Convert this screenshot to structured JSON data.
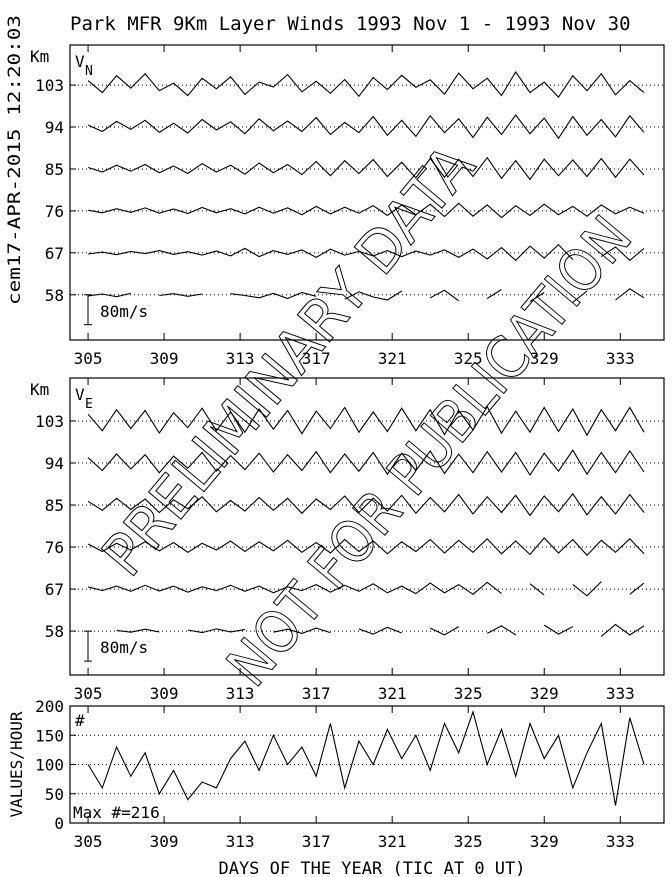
{
  "chart_data": [
    {
      "type": "line",
      "title": "Park MFR 9Km Layer Winds 1993 Nov  1 - 1993 Nov 30",
      "side_label": "cem17-APR-2015 12:20:03",
      "label": "V",
      "label_sub": "N",
      "ylabel": "Km",
      "annotations": [
        "PRELIMINARY DATA",
        "NOT FOR PUBLICATION"
      ],
      "scale_bar": {
        "value": 80,
        "label": "80m/s"
      },
      "xlim": [
        304.05,
        335.3
      ],
      "xticks": [
        305,
        309,
        313,
        317,
        321,
        325,
        329,
        333
      ],
      "ylim": [
        48.3,
        111.6
      ],
      "yticks": [
        58,
        67,
        76,
        85,
        94,
        103
      ],
      "grid": true,
      "color": "#000000",
      "x": [
        305,
        305.75,
        306.5,
        307.25,
        308,
        308.75,
        309.5,
        310.25,
        311,
        311.75,
        312.5,
        313.25,
        314,
        314.75,
        315.5,
        316.25,
        317,
        317.75,
        318.5,
        319.25,
        320,
        320.75,
        321.5,
        322.25,
        323,
        323.75,
        324.5,
        325.25,
        326,
        326.75,
        327.5,
        328.25,
        329,
        329.75,
        330.5,
        331.25,
        332,
        332.75,
        333.5,
        334.25
      ],
      "series": [
        {
          "values": [
            -3,
            2,
            -5,
            4,
            null,
            -2,
            3,
            -4,
            2,
            null,
            3,
            -2,
            -8,
            4,
            -10,
            6,
            -4,
            null,
            -12,
            8,
            -6,
            -14,
            10,
            null,
            -8,
            12,
            -16,
            null,
            -10,
            14,
            null,
            -18,
            6,
            null,
            -20,
            10,
            null,
            -14,
            16,
            -8
          ]
        },
        {
          "values": [
            -3,
            2,
            -5,
            4,
            -2,
            6,
            -4,
            3,
            -6,
            5,
            -8,
            12,
            -10,
            6,
            -4,
            8,
            -12,
            10,
            -6,
            4,
            -8,
            6,
            -10,
            5,
            -6,
            8,
            -12,
            10,
            -16,
            14,
            -20,
            18,
            -14,
            22,
            -18,
            null,
            -10,
            16,
            -20,
            12
          ]
        },
        {
          "values": [
            2,
            -5,
            6,
            -4,
            8,
            -6,
            5,
            -7,
            9,
            -5,
            6,
            -8,
            10,
            -6,
            8,
            -10,
            12,
            -8,
            10,
            -6,
            14,
            -12,
            16,
            -10,
            18,
            -15,
            20,
            -14,
            16,
            -18,
            14,
            -12,
            18,
            -10,
            12,
            -14,
            16,
            -8,
            10,
            -6
          ]
        },
        {
          "values": [
            4,
            -8,
            10,
            -6,
            12,
            -10,
            8,
            -12,
            14,
            -8,
            10,
            -14,
            16,
            -10,
            12,
            -15,
            20,
            -18,
            22,
            -12,
            25,
            -20,
            18,
            -24,
            28,
            -22,
            26,
            -20,
            30,
            -25,
            22,
            -28,
            26,
            -18,
            24,
            -20,
            28,
            -22,
            26,
            -16
          ]
        },
        {
          "values": [
            5,
            -12,
            15,
            -6,
            18,
            -14,
            10,
            -16,
            20,
            -8,
            14,
            -18,
            22,
            -10,
            16,
            -12,
            25,
            -20,
            12,
            -15,
            28,
            -22,
            18,
            -25,
            30,
            -15,
            22,
            -28,
            26,
            -20,
            32,
            -18,
            24,
            -30,
            28,
            -22,
            20,
            -26,
            30,
            -14
          ]
        },
        {
          "values": [
            12,
            -20,
            25,
            -8,
            30,
            -15,
            5,
            -28,
            18,
            -10,
            22,
            -25,
            8,
            -5,
            28,
            -18,
            10,
            -22,
            15,
            -30,
            20,
            -12,
            26,
            -6,
            14,
            -24,
            32,
            -10,
            18,
            -28,
            35,
            -20,
            8,
            -32,
            25,
            -15,
            30,
            -26,
            12,
            -20
          ]
        }
      ]
    },
    {
      "type": "line",
      "label": "V",
      "label_sub": "E",
      "ylabel": "Km",
      "scale_bar": {
        "value": 80,
        "label": "80m/s"
      },
      "xlim": [
        304.05,
        335.3
      ],
      "xticks": [
        305,
        309,
        313,
        317,
        321,
        325,
        329,
        333
      ],
      "ylim": [
        48.6,
        112.2
      ],
      "yticks": [
        58,
        67,
        76,
        85,
        94,
        103
      ],
      "grid": true,
      "color": "#000000",
      "x": [
        305,
        305.75,
        306.5,
        307.25,
        308,
        308.75,
        309.5,
        310.25,
        311,
        311.75,
        312.5,
        313.25,
        314,
        314.75,
        315.5,
        316.25,
        317,
        317.75,
        318.5,
        319.25,
        320,
        320.75,
        321.5,
        322.25,
        323,
        323.75,
        324.5,
        325.25,
        326,
        326.75,
        327.5,
        328.25,
        329,
        329.75,
        330.5,
        331.25,
        332,
        332.75,
        333.5,
        334.25
      ],
      "series": [
        {
          "values": [
            4,
            null,
            2,
            -3,
            5,
            -2,
            null,
            3,
            -4,
            6,
            -2,
            4,
            null,
            -3,
            5,
            -6,
            8,
            -4,
            null,
            6,
            -8,
            10,
            -5,
            null,
            8,
            -10,
            12,
            null,
            -6,
            14,
            -10,
            null,
            16,
            -8,
            12,
            null,
            -14,
            18,
            -10,
            14
          ]
        },
        {
          "values": [
            6,
            -4,
            8,
            -6,
            10,
            -5,
            8,
            -8,
            6,
            -4,
            10,
            -6,
            8,
            -10,
            6,
            -4,
            12,
            -8,
            10,
            -6,
            14,
            -10,
            8,
            -12,
            16,
            -10,
            12,
            -14,
            18,
            -12,
            null,
            14,
            -16,
            null,
            12,
            -18,
            20,
            null,
            -14,
            16
          ]
        },
        {
          "values": [
            8,
            -12,
            10,
            -8,
            14,
            -10,
            12,
            -14,
            10,
            -8,
            16,
            -12,
            14,
            -10,
            18,
            -14,
            12,
            -16,
            20,
            -12,
            16,
            -18,
            14,
            -12,
            20,
            -16,
            18,
            -14,
            22,
            -18,
            16,
            -20,
            24,
            -16,
            20,
            -22,
            18,
            -14,
            22,
            -18
          ]
        },
        {
          "values": [
            10,
            -14,
            18,
            -12,
            16,
            -20,
            14,
            -10,
            22,
            -18,
            12,
            -16,
            20,
            -14,
            18,
            -22,
            16,
            -12,
            24,
            -20,
            18,
            -16,
            26,
            -22,
            20,
            -18,
            28,
            -24,
            22,
            -20,
            26,
            -28,
            24,
            -18,
            30,
            -26,
            22,
            -24,
            28,
            -20
          ]
        },
        {
          "values": [
            14,
            -20,
            24,
            -16,
            22,
            -26,
            18,
            -14,
            28,
            -22,
            20,
            -18,
            26,
            -24,
            22,
            -20,
            30,
            -26,
            24,
            -22,
            28,
            -30,
            26,
            -20,
            32,
            -28,
            24,
            -26,
            30,
            -24,
            28,
            -32,
            26,
            -22,
            34,
            -30,
            28,
            -26,
            32,
            -24
          ]
        },
        {
          "values": [
            18,
            -26,
            30,
            -20,
            28,
            -32,
            22,
            -18,
            34,
            -26,
            24,
            -30,
            32,
            -22,
            28,
            -34,
            26,
            -20,
            36,
            -30,
            24,
            -28,
            34,
            -26,
            30,
            -36,
            28,
            -24,
            38,
            -32,
            26,
            -30,
            36,
            -28,
            32,
            -38,
            30,
            -26,
            36,
            -30
          ]
        }
      ]
    },
    {
      "type": "line",
      "ylabel": "VALUES/HOUR",
      "annotation": "#",
      "max_label": "Max #=216",
      "xlabel": "DAYS OF THE YEAR (TIC AT 0 UT)",
      "xlim": [
        304.05,
        335.3
      ],
      "xticks": [
        305,
        309,
        313,
        317,
        321,
        325,
        329,
        333
      ],
      "ylim": [
        0,
        200
      ],
      "yticks": [
        0,
        50,
        100,
        150,
        200
      ],
      "grid": true,
      "color": "#000000",
      "x": [
        305,
        305.75,
        306.5,
        307.25,
        308,
        308.75,
        309.5,
        310.25,
        311,
        311.75,
        312.5,
        313.25,
        314,
        314.75,
        315.5,
        316.25,
        317,
        317.75,
        318.5,
        319.25,
        320,
        320.75,
        321.5,
        322.25,
        323,
        323.75,
        324.5,
        325.25,
        326,
        326.75,
        327.5,
        328.25,
        329,
        329.75,
        330.5,
        331.25,
        332,
        332.75,
        333.5,
        334.25
      ],
      "values": [
        100,
        60,
        130,
        80,
        120,
        50,
        90,
        40,
        70,
        60,
        110,
        140,
        90,
        150,
        100,
        130,
        80,
        170,
        60,
        140,
        100,
        160,
        110,
        150,
        90,
        170,
        120,
        190,
        100,
        160,
        80,
        170,
        110,
        150,
        60,
        120,
        170,
        30,
        180,
        100
      ]
    }
  ]
}
